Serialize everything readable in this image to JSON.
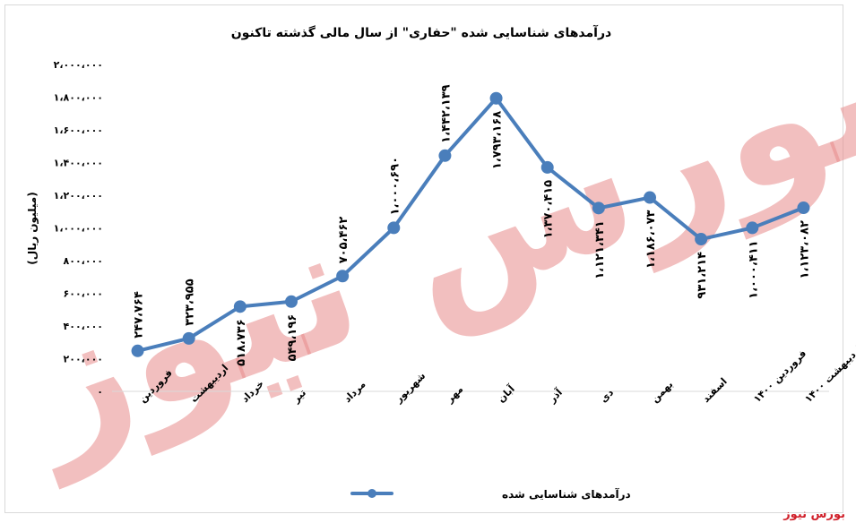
{
  "chart_data": {
    "type": "line",
    "title": "درآمدهای شناسایی شده \"حفاری\" از سال مالی گذشته تاکنون",
    "ylabel": "(میلیون ریال)",
    "ylim": [
      0,
      2000000
    ],
    "y_ticks": [
      "۰",
      "۲۰۰،۰۰۰",
      "۴۰۰،۰۰۰",
      "۶۰۰،۰۰۰",
      "۸۰۰،۰۰۰",
      "۱،۰۰۰،۰۰۰",
      "۱،۲۰۰،۰۰۰",
      "۱،۴۰۰،۰۰۰",
      "۱،۶۰۰،۰۰۰",
      "۱،۸۰۰،۰۰۰",
      "۲،۰۰۰،۰۰۰"
    ],
    "y_tick_values": [
      0,
      200000,
      400000,
      600000,
      800000,
      1000000,
      1200000,
      1400000,
      1600000,
      1800000,
      2000000
    ],
    "categories": [
      "فروردین",
      "اردیبهشت",
      "خرداد",
      "تیر",
      "مرداد",
      "شهریور",
      "مهر",
      "آبان",
      "آذر",
      "دی",
      "بهمن",
      "اسفند",
      "فروردین ۱۴۰۰",
      "اردیبهشت ۱۴۰۰"
    ],
    "series": [
      {
        "name": "درآمدهای شناسایی شده",
        "color": "#4a7ebb",
        "values": [
          247764,
          323955,
          518736,
          549196,
          705462,
          1000690,
          1442139,
          1793168,
          1370415,
          1121341,
          1186073,
          931214,
          1000411,
          1123082
        ],
        "labels": [
          "۲۴۷،۷۶۴",
          "۳۲۳،۹۵۵",
          "۵۱۸،۷۳۶",
          "۵۴۹،۱۹۶",
          "۷۰۵،۴۶۲",
          "۱،۰۰۰،۶۹۰",
          "۱،۴۴۲،۱۳۹",
          "۱،۷۹۳،۱۶۸",
          "۱،۳۷۰،۴۱۵",
          "۱،۱۲۱،۳۴۱",
          "۱،۱۸۶،۰۷۳",
          "۹۳۱،۲۱۴",
          "۱،۰۰۰،۴۱۱",
          "۱،۱۲۳،۰۸۲"
        ]
      }
    ],
    "grid": false,
    "legend": "bottom",
    "watermark_text": "بورس نیوز"
  },
  "brand_text": "بورس نیوز"
}
